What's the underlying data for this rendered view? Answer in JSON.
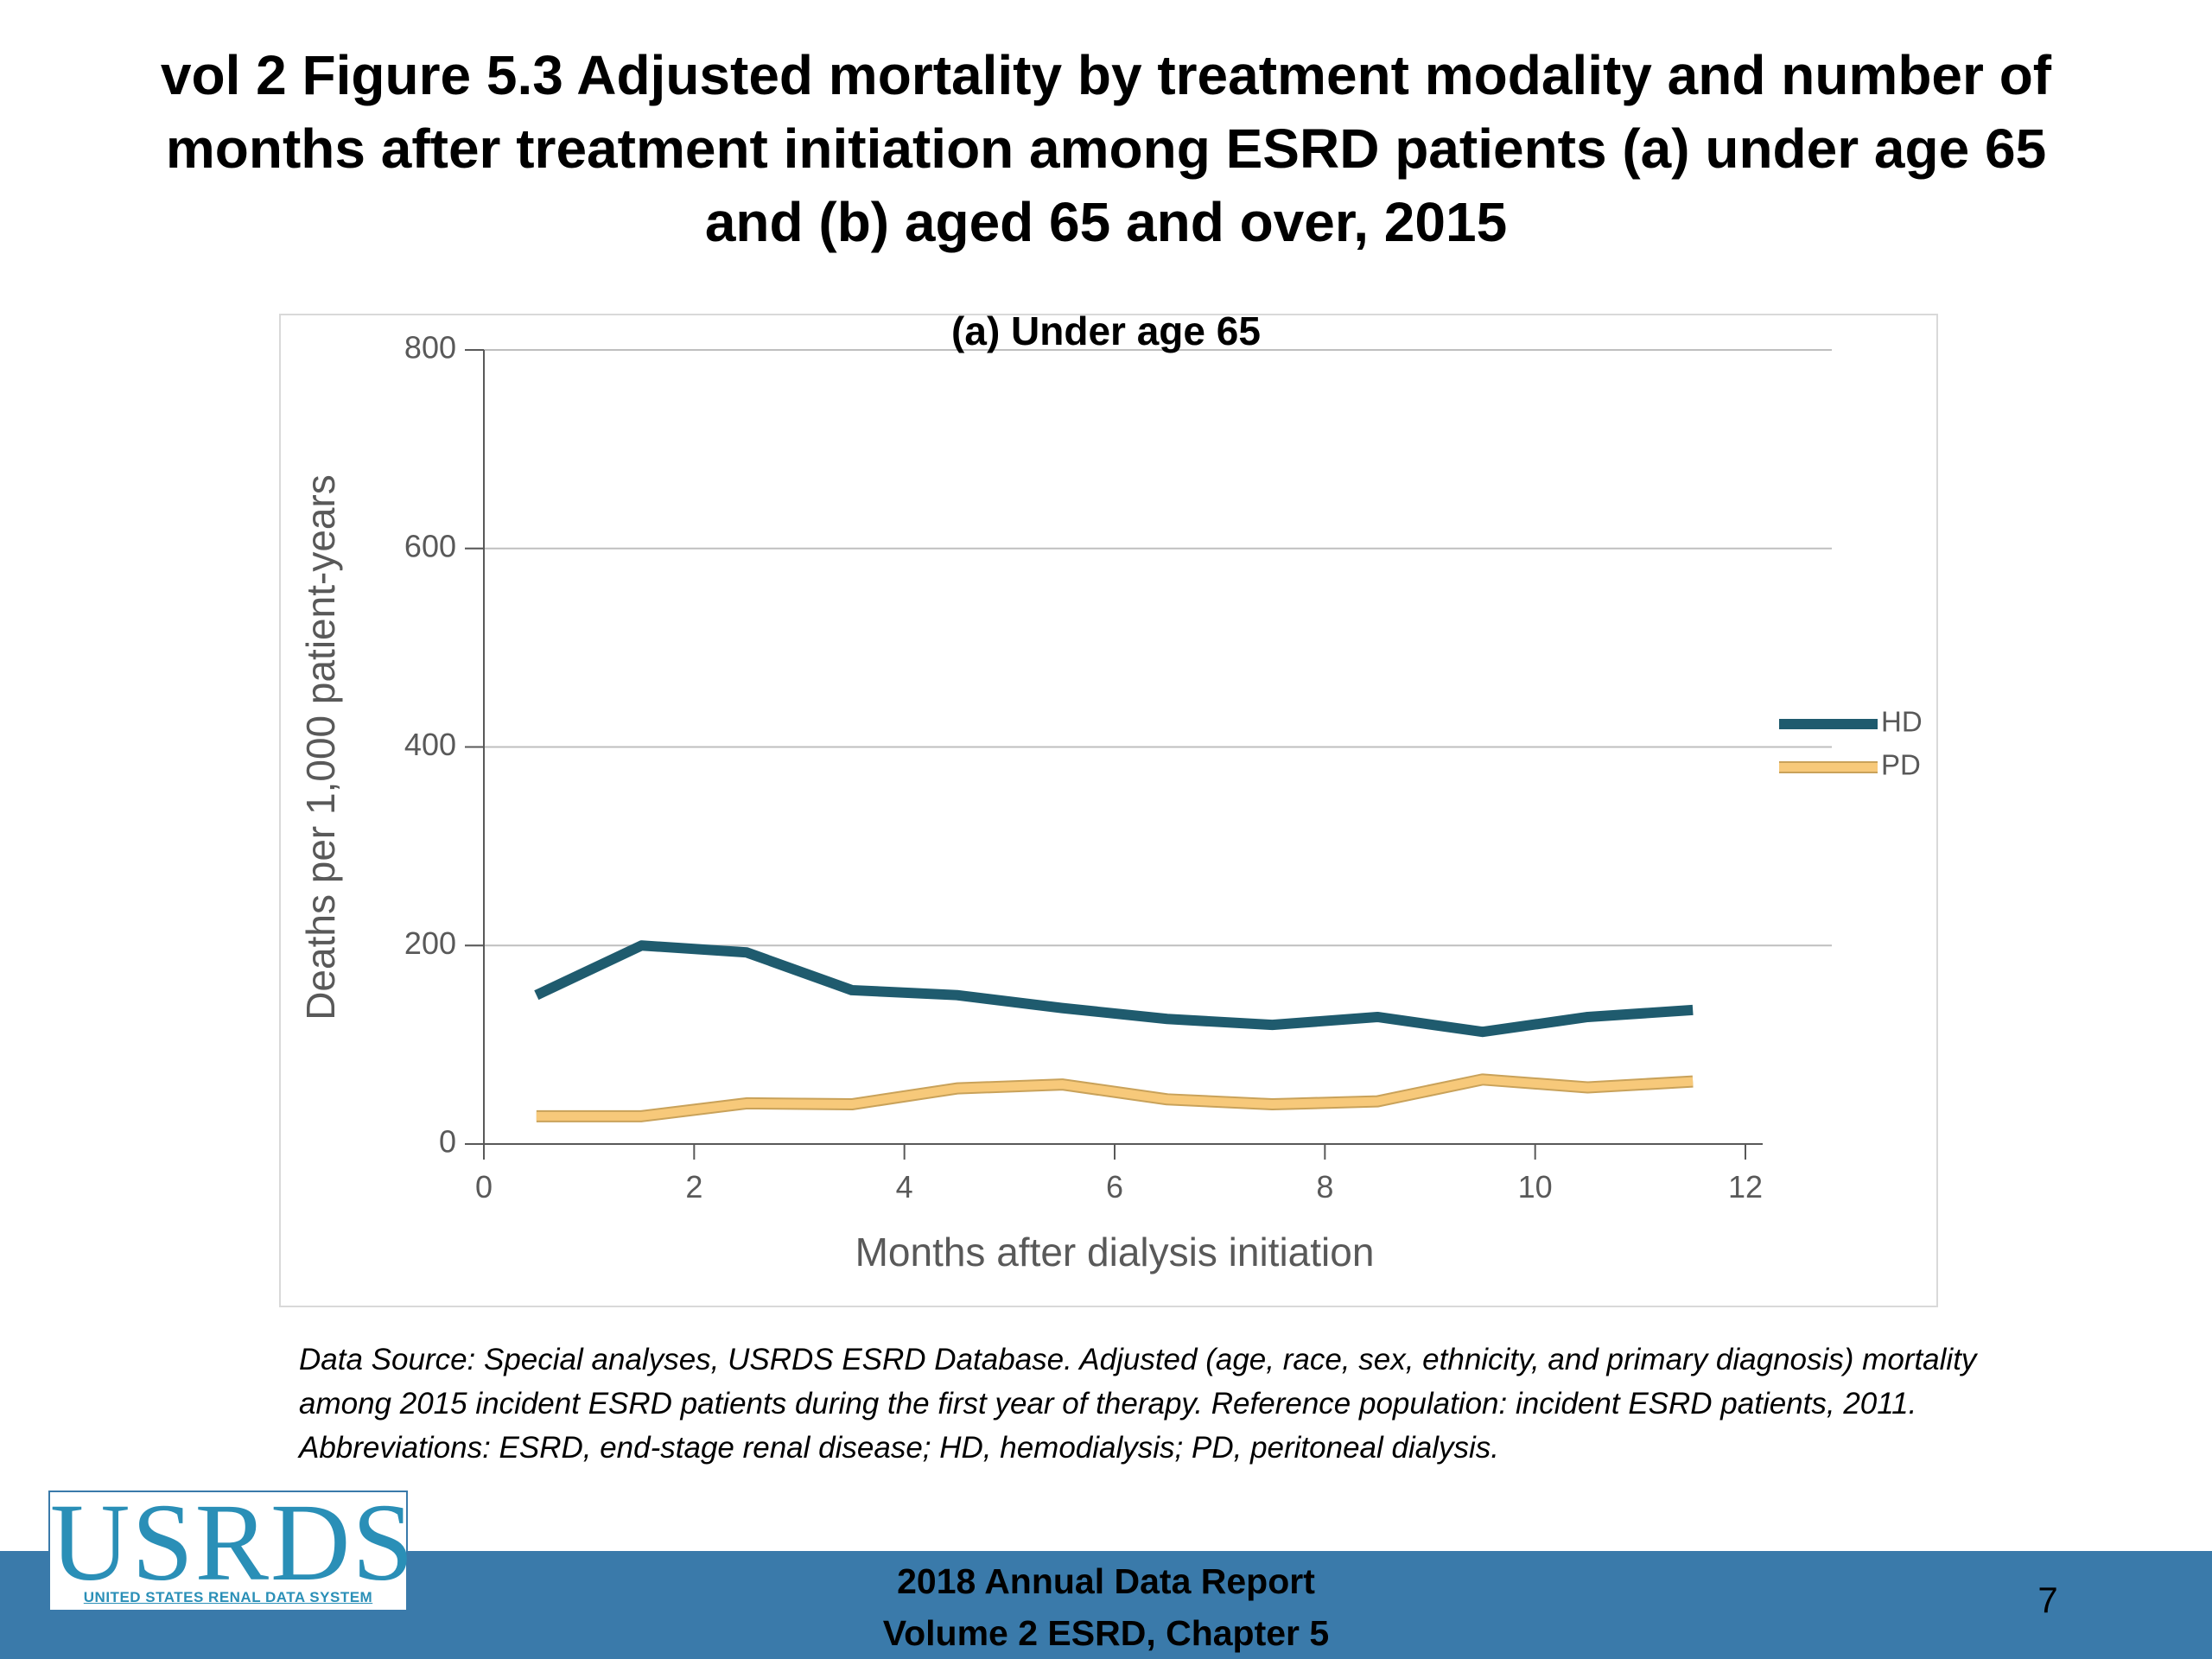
{
  "slide": {
    "title": "vol 2 Figure 5.3 Adjusted mortality by treatment modality and number of months after treatment initiation among ESRD patients (a) under age 65 and (b) aged 65 and over, 2015",
    "caption": "Data Source: Special analyses, USRDS ESRD Database. Adjusted (age, race, sex, ethnicity, and primary diagnosis) mortality among 2015 incident ESRD patients during the first year of therapy. Reference population: incident ESRD patients, 2011. Abbreviations: ESRD, end-stage renal disease; HD, hemodialysis; PD, peritoneal dialysis.",
    "footer_line1": "2018 Annual Data Report",
    "footer_line2": "Volume 2 ESRD, Chapter 5",
    "page_number": "7",
    "logo_text": "USRDS",
    "logo_subtext": "UNITED STATES RENAL DATA SYSTEM"
  },
  "colors": {
    "hd": "#1f5b6e",
    "pd": "#f7c97a",
    "pd_outline": "#c9a25a",
    "grid": "#bfbfbf",
    "axis": "#595959",
    "footer": "#3a7aaa",
    "logo": "#2a8fb7"
  },
  "chart_data": {
    "type": "line",
    "title": "(a) Under age 65",
    "xlabel": "Months after dialysis initiation",
    "ylabel": "Deaths per 1,000 patient-years",
    "xlim": [
      0,
      12
    ],
    "ylim": [
      0,
      800
    ],
    "xticks": [
      0,
      2,
      4,
      6,
      8,
      10,
      12
    ],
    "yticks": [
      0,
      200,
      400,
      600,
      800
    ],
    "grid": true,
    "legend_position": "right",
    "x": [
      0.5,
      1.5,
      2.5,
      3.5,
      4.5,
      5.5,
      6.5,
      7.5,
      8.5,
      9.5,
      10.5,
      11.5
    ],
    "series": [
      {
        "name": "HD",
        "values": [
          150,
          200,
          193,
          155,
          150,
          137,
          126,
          120,
          128,
          113,
          128,
          135
        ]
      },
      {
        "name": "PD",
        "values": [
          28,
          28,
          41,
          40,
          56,
          60,
          45,
          40,
          43,
          65,
          57,
          63
        ]
      }
    ]
  }
}
